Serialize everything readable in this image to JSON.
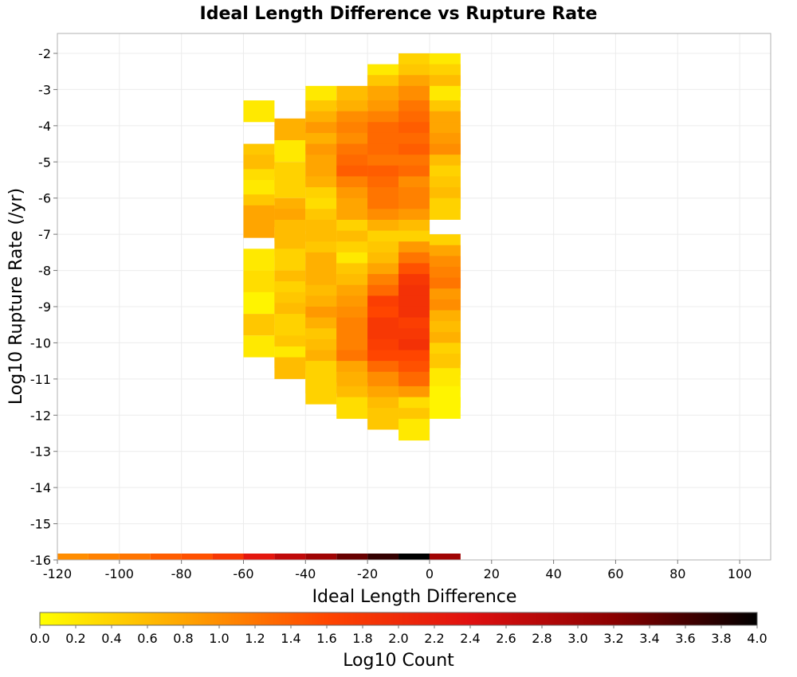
{
  "chart_data": {
    "type": "heatmap",
    "title": "Ideal Length Difference vs Rupture Rate",
    "xlabel": "Ideal Length Difference",
    "ylabel": "Log10 Rupture Rate (/yr)",
    "xlim": [
      -120,
      110
    ],
    "ylim": [
      -16,
      -1.45
    ],
    "x_ticks": [
      -120,
      -100,
      -80,
      -60,
      -40,
      -20,
      0,
      20,
      40,
      60,
      80,
      100
    ],
    "y_ticks": [
      -2,
      -3,
      -4,
      -5,
      -6,
      -7,
      -8,
      -9,
      -10,
      -11,
      -12,
      -13,
      -14,
      -15,
      -16
    ],
    "grid": true,
    "bin_width_x": 10,
    "bin_height_y": 0.6,
    "colorbar": {
      "label": "Log10 Count",
      "min": 0.0,
      "max": 4.0,
      "ticks": [
        "0.0",
        "0.2",
        "0.4",
        "0.6",
        "0.8",
        "1.0",
        "1.2",
        "1.4",
        "1.6",
        "1.8",
        "2.0",
        "2.2",
        "2.4",
        "2.6",
        "2.8",
        "3.0",
        "3.2",
        "3.4",
        "3.6",
        "3.8",
        "4.0"
      ],
      "colors": [
        "#ffff00",
        "#ffa500",
        "#ff4500",
        "#e01010",
        "#8b0000",
        "#000000"
      ]
    },
    "columns": [
      {
        "x": -60,
        "cells": [
          [
            -3.6,
            0.2
          ],
          [
            -4.8,
            0.5
          ],
          [
            -5.1,
            0.6
          ],
          [
            -5.5,
            0.3
          ],
          [
            -5.8,
            0.2
          ],
          [
            -6.2,
            0.5
          ],
          [
            -6.5,
            0.8
          ],
          [
            -6.8,
            0.8
          ],
          [
            -7.7,
            0.2
          ],
          [
            -8.3,
            0.3
          ],
          [
            -8.6,
            0.3
          ],
          [
            -8.9,
            0.1
          ],
          [
            -9.5,
            0.5
          ],
          [
            -10.1,
            0.2
          ]
        ]
      },
      {
        "x": -50,
        "cells": [
          [
            -4.1,
            0.7
          ],
          [
            -4.4,
            0.7
          ],
          [
            -4.7,
            0.2
          ],
          [
            -5.3,
            0.4
          ],
          [
            -5.7,
            0.4
          ],
          [
            -6.3,
            0.7
          ],
          [
            -6.6,
            0.8
          ],
          [
            -6.9,
            0.6
          ],
          [
            -7.3,
            0.6
          ],
          [
            -7.7,
            0.4
          ],
          [
            -8.3,
            0.6
          ],
          [
            -8.6,
            0.4
          ],
          [
            -8.9,
            0.5
          ],
          [
            -9.2,
            0.6
          ],
          [
            -9.5,
            0.4
          ],
          [
            -9.8,
            0.4
          ],
          [
            -10.1,
            0.5
          ],
          [
            -10.4,
            0.2
          ],
          [
            -10.7,
            0.6
          ]
        ]
      },
      {
        "x": -40,
        "cells": [
          [
            -3.2,
            0.2
          ],
          [
            -3.6,
            0.5
          ],
          [
            -3.9,
            0.7
          ],
          [
            -4.2,
            0.9
          ],
          [
            -4.5,
            0.7
          ],
          [
            -4.8,
            0.9
          ],
          [
            -5.1,
            0.8
          ],
          [
            -5.4,
            0.8
          ],
          [
            -5.7,
            0.7
          ],
          [
            -6.0,
            0.4
          ],
          [
            -6.3,
            0.3
          ],
          [
            -6.6,
            0.5
          ],
          [
            -6.9,
            0.6
          ],
          [
            -7.2,
            0.6
          ],
          [
            -7.5,
            0.5
          ],
          [
            -7.8,
            0.7
          ],
          [
            -8.1,
            0.7
          ],
          [
            -8.4,
            0.7
          ],
          [
            -8.7,
            0.6
          ],
          [
            -9.0,
            0.7
          ],
          [
            -9.3,
            0.9
          ],
          [
            -9.6,
            0.7
          ],
          [
            -9.9,
            0.5
          ],
          [
            -10.2,
            0.6
          ],
          [
            -10.5,
            0.7
          ],
          [
            -10.8,
            0.4
          ],
          [
            -11.1,
            0.4
          ],
          [
            -11.4,
            0.4
          ]
        ]
      },
      {
        "x": -30,
        "cells": [
          [
            -3.2,
            0.6
          ],
          [
            -3.6,
            0.7
          ],
          [
            -3.9,
            1.0
          ],
          [
            -4.2,
            1.1
          ],
          [
            -4.5,
            1.0
          ],
          [
            -4.8,
            1.2
          ],
          [
            -5.1,
            1.3
          ],
          [
            -5.4,
            1.4
          ],
          [
            -5.7,
            1.1
          ],
          [
            -6.0,
            0.9
          ],
          [
            -6.3,
            0.8
          ],
          [
            -6.6,
            0.8
          ],
          [
            -6.9,
            0.4
          ],
          [
            -7.2,
            0.6
          ],
          [
            -7.5,
            0.4
          ],
          [
            -7.8,
            0.2
          ],
          [
            -8.1,
            0.5
          ],
          [
            -8.4,
            0.6
          ],
          [
            -8.7,
            0.8
          ],
          [
            -9.0,
            0.9
          ],
          [
            -9.3,
            1.0
          ],
          [
            -9.6,
            1.1
          ],
          [
            -9.9,
            1.1
          ],
          [
            -10.2,
            1.1
          ],
          [
            -10.5,
            1.2
          ],
          [
            -10.8,
            0.8
          ],
          [
            -11.1,
            0.7
          ],
          [
            -11.5,
            0.6
          ],
          [
            -11.8,
            0.3
          ]
        ]
      },
      {
        "x": -20,
        "cells": [
          [
            -2.6,
            0.2
          ],
          [
            -2.9,
            0.5
          ],
          [
            -3.2,
            0.8
          ],
          [
            -3.6,
            0.9
          ],
          [
            -3.9,
            1.1
          ],
          [
            -4.2,
            1.3
          ],
          [
            -4.5,
            1.3
          ],
          [
            -4.8,
            1.3
          ],
          [
            -5.1,
            1.2
          ],
          [
            -5.4,
            1.4
          ],
          [
            -5.7,
            1.3
          ],
          [
            -6.0,
            1.2
          ],
          [
            -6.3,
            1.2
          ],
          [
            -6.6,
            1.0
          ],
          [
            -6.9,
            0.7
          ],
          [
            -7.2,
            0.4
          ],
          [
            -7.5,
            0.5
          ],
          [
            -7.8,
            0.6
          ],
          [
            -8.1,
            0.8
          ],
          [
            -8.4,
            1.1
          ],
          [
            -8.7,
            1.3
          ],
          [
            -9.0,
            1.7
          ],
          [
            -9.3,
            1.6
          ],
          [
            -9.6,
            1.8
          ],
          [
            -9.9,
            1.8
          ],
          [
            -10.2,
            1.7
          ],
          [
            -10.5,
            1.6
          ],
          [
            -10.8,
            1.3
          ],
          [
            -11.1,
            1.0
          ],
          [
            -11.5,
            0.8
          ],
          [
            -11.8,
            0.6
          ],
          [
            -12.1,
            0.5
          ]
        ]
      },
      {
        "x": -10,
        "cells": [
          [
            -2.3,
            0.4
          ],
          [
            -2.6,
            0.5
          ],
          [
            -2.9,
            0.8
          ],
          [
            -3.2,
            1.0
          ],
          [
            -3.6,
            1.2
          ],
          [
            -3.9,
            1.3
          ],
          [
            -4.2,
            1.4
          ],
          [
            -4.5,
            1.3
          ],
          [
            -4.8,
            1.4
          ],
          [
            -5.1,
            1.2
          ],
          [
            -5.4,
            1.3
          ],
          [
            -5.7,
            1.0
          ],
          [
            -6.0,
            1.1
          ],
          [
            -6.3,
            1.1
          ],
          [
            -6.6,
            0.9
          ],
          [
            -6.9,
            0.6
          ],
          [
            -7.2,
            0.4
          ],
          [
            -7.5,
            0.9
          ],
          [
            -7.8,
            1.2
          ],
          [
            -8.1,
            1.5
          ],
          [
            -8.4,
            1.8
          ],
          [
            -8.7,
            1.9
          ],
          [
            -9.0,
            1.9
          ],
          [
            -9.3,
            1.9
          ],
          [
            -9.6,
            1.7
          ],
          [
            -9.9,
            1.8
          ],
          [
            -10.2,
            1.9
          ],
          [
            -10.5,
            1.6
          ],
          [
            -10.8,
            1.5
          ],
          [
            -11.1,
            1.3
          ],
          [
            -11.5,
            0.9
          ],
          [
            -11.8,
            0.3
          ],
          [
            -12.1,
            0.5
          ],
          [
            -12.4,
            0.2
          ]
        ]
      },
      {
        "x": 0,
        "cells": [
          [
            -2.3,
            0.2
          ],
          [
            -2.6,
            0.4
          ],
          [
            -2.9,
            0.6
          ],
          [
            -3.2,
            0.2
          ],
          [
            -3.6,
            0.5
          ],
          [
            -3.9,
            0.8
          ],
          [
            -4.2,
            0.8
          ],
          [
            -4.5,
            0.9
          ],
          [
            -4.8,
            1.0
          ],
          [
            -5.1,
            0.6
          ],
          [
            -5.4,
            0.4
          ],
          [
            -5.7,
            0.5
          ],
          [
            -6.0,
            0.6
          ],
          [
            -6.3,
            0.4
          ],
          [
            -7.3,
            0.4
          ],
          [
            -7.6,
            0.8
          ],
          [
            -7.9,
            1.0
          ],
          [
            -8.2,
            1.1
          ],
          [
            -8.5,
            1.2
          ],
          [
            -8.8,
            0.9
          ],
          [
            -9.1,
            1.0
          ],
          [
            -9.4,
            0.7
          ],
          [
            -9.7,
            0.6
          ],
          [
            -10.0,
            0.7
          ],
          [
            -10.3,
            0.4
          ],
          [
            -10.6,
            0.5
          ],
          [
            -11.0,
            0.2
          ],
          [
            -11.5,
            0.1
          ],
          [
            -11.8,
            0.1
          ]
        ]
      }
    ],
    "bottom_row": {
      "y": -16,
      "values": [
        1.0,
        1.1,
        1.2,
        1.4,
        1.5,
        1.8,
        2.3,
        2.7,
        3.0,
        3.4,
        3.7,
        4.0,
        3.0
      ]
    }
  }
}
